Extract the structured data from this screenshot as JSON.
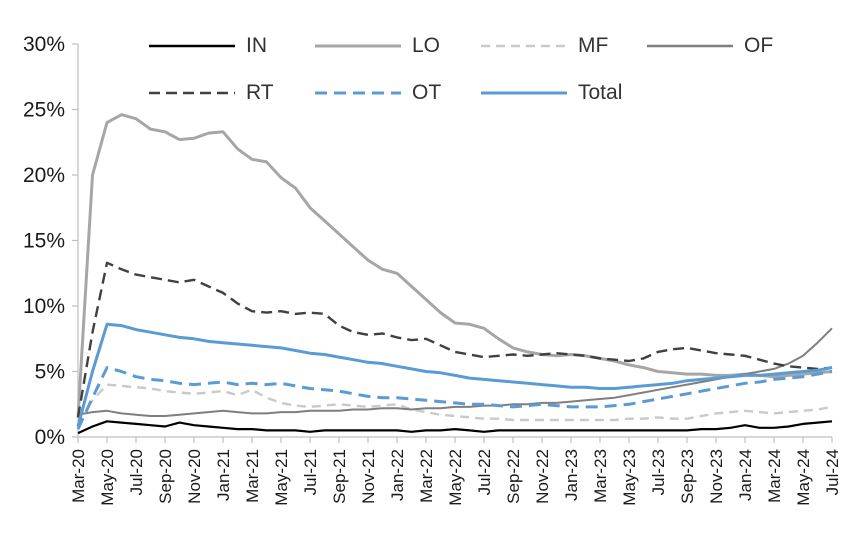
{
  "chart_data": {
    "type": "line",
    "title": "",
    "xlabel": "",
    "ylabel": "",
    "ylim": [
      0,
      30
    ],
    "yticks": [
      0,
      5,
      10,
      15,
      20,
      25,
      30
    ],
    "ytick_labels": [
      "0%",
      "5%",
      "10%",
      "15%",
      "20%",
      "25%",
      "30%"
    ],
    "x_start": "Mar-20",
    "x_end": "Jul-24",
    "frequency": "monthly",
    "x_tick_step": 2,
    "x_tick_labels": [
      "Mar-20",
      "May-20",
      "Jul-20",
      "Sep-20",
      "Nov-20",
      "Jan-21",
      "Mar-21",
      "May-21",
      "Jul-21",
      "Sep-21",
      "Nov-21",
      "Jan-22",
      "Mar-22",
      "May-22",
      "Jul-22",
      "Sep-22",
      "Nov-22",
      "Jan-23",
      "Mar-23",
      "May-23",
      "Jul-23",
      "Sep-23",
      "Nov-23",
      "Jan-24",
      "Mar-24",
      "May-24",
      "Jul-24"
    ],
    "legend_rows": [
      [
        "IN",
        "LO",
        "MF",
        "OF"
      ],
      [
        "RT",
        "OT",
        "Total"
      ]
    ],
    "axis_color": "#bfbfbf",
    "label_color": "#1a1a1a",
    "series": [
      {
        "name": "IN",
        "color": "#000000",
        "line_style": "solid",
        "width": 2.2,
        "dasharray": "",
        "values": [
          0.3,
          0.8,
          1.2,
          1.1,
          1.0,
          0.9,
          0.8,
          1.1,
          0.9,
          0.8,
          0.7,
          0.6,
          0.6,
          0.5,
          0.5,
          0.5,
          0.4,
          0.5,
          0.5,
          0.5,
          0.5,
          0.5,
          0.5,
          0.4,
          0.5,
          0.5,
          0.6,
          0.5,
          0.4,
          0.5,
          0.5,
          0.5,
          0.5,
          0.5,
          0.5,
          0.5,
          0.5,
          0.5,
          0.5,
          0.5,
          0.5,
          0.5,
          0.5,
          0.6,
          0.6,
          0.7,
          0.9,
          0.7,
          0.7,
          0.8,
          1.0,
          1.1,
          1.2
        ]
      },
      {
        "name": "LO",
        "color": "#a6a6a6",
        "line_style": "solid",
        "width": 3,
        "dasharray": "",
        "values": [
          1.5,
          20.0,
          24.0,
          24.6,
          24.3,
          23.5,
          23.3,
          22.7,
          22.8,
          23.2,
          23.3,
          22.0,
          21.2,
          21.0,
          19.8,
          19.0,
          17.5,
          16.5,
          15.5,
          14.5,
          13.5,
          12.8,
          12.5,
          11.5,
          10.5,
          9.5,
          8.7,
          8.6,
          8.3,
          7.5,
          6.8,
          6.5,
          6.3,
          6.2,
          6.3,
          6.2,
          6.0,
          5.8,
          5.5,
          5.3,
          5.0,
          4.9,
          4.8,
          4.8,
          4.7,
          4.7,
          4.8,
          4.7,
          4.6,
          4.7,
          4.8,
          4.9,
          5.0
        ]
      },
      {
        "name": "MF",
        "color": "#c9c9c9",
        "line_style": "dashed",
        "width": 2.4,
        "dasharray": "9 6",
        "values": [
          1.4,
          2.8,
          4.0,
          3.9,
          3.8,
          3.7,
          3.5,
          3.4,
          3.3,
          3.4,
          3.5,
          3.2,
          3.6,
          3.0,
          2.6,
          2.4,
          2.3,
          2.4,
          2.5,
          2.4,
          2.3,
          2.4,
          2.5,
          2.1,
          1.9,
          1.7,
          1.6,
          1.5,
          1.4,
          1.4,
          1.3,
          1.3,
          1.3,
          1.3,
          1.3,
          1.3,
          1.3,
          1.3,
          1.4,
          1.4,
          1.5,
          1.4,
          1.4,
          1.6,
          1.8,
          1.9,
          2.0,
          1.9,
          1.8,
          1.9,
          2.0,
          2.1,
          2.3
        ]
      },
      {
        "name": "OF",
        "color": "#7f7f7f",
        "line_style": "solid",
        "width": 2,
        "dasharray": "",
        "values": [
          1.7,
          1.9,
          2.0,
          1.8,
          1.7,
          1.6,
          1.6,
          1.7,
          1.8,
          1.9,
          2.0,
          1.9,
          1.8,
          1.8,
          1.9,
          1.9,
          2.0,
          2.0,
          2.0,
          2.1,
          2.1,
          2.2,
          2.2,
          2.1,
          2.2,
          2.2,
          2.3,
          2.3,
          2.4,
          2.4,
          2.5,
          2.5,
          2.6,
          2.6,
          2.7,
          2.8,
          2.9,
          3.0,
          3.2,
          3.4,
          3.6,
          3.8,
          4.0,
          4.2,
          4.4,
          4.6,
          4.8,
          5.0,
          5.2,
          5.6,
          6.2,
          7.2,
          8.3
        ]
      },
      {
        "name": "RT",
        "color": "#404040",
        "line_style": "dashed",
        "width": 2.4,
        "dasharray": "11 6",
        "values": [
          1.5,
          8.0,
          13.3,
          12.8,
          12.4,
          12.2,
          12.0,
          11.8,
          12.0,
          11.5,
          11.0,
          10.2,
          9.6,
          9.5,
          9.6,
          9.4,
          9.5,
          9.4,
          8.5,
          8.0,
          7.8,
          7.9,
          7.6,
          7.4,
          7.5,
          7.0,
          6.5,
          6.3,
          6.1,
          6.2,
          6.3,
          6.2,
          6.3,
          6.4,
          6.3,
          6.2,
          6.0,
          5.9,
          5.8,
          6.0,
          6.5,
          6.7,
          6.8,
          6.6,
          6.4,
          6.3,
          6.2,
          5.9,
          5.6,
          5.4,
          5.3,
          5.2,
          5.3
        ]
      },
      {
        "name": "OT",
        "color": "#5b9bd5",
        "line_style": "dashed",
        "width": 3,
        "dasharray": "12 7",
        "values": [
          0.6,
          3.0,
          5.3,
          5.0,
          4.6,
          4.4,
          4.3,
          4.1,
          4.0,
          4.1,
          4.2,
          4.0,
          4.1,
          4.0,
          4.1,
          3.9,
          3.7,
          3.6,
          3.5,
          3.3,
          3.1,
          3.0,
          3.0,
          2.9,
          2.8,
          2.7,
          2.6,
          2.5,
          2.5,
          2.4,
          2.3,
          2.4,
          2.5,
          2.4,
          2.3,
          2.3,
          2.3,
          2.4,
          2.5,
          2.7,
          2.9,
          3.1,
          3.3,
          3.5,
          3.7,
          3.9,
          4.1,
          4.2,
          4.4,
          4.5,
          4.6,
          4.8,
          5.0
        ]
      },
      {
        "name": "Total",
        "color": "#5b9bd5",
        "line_style": "solid",
        "width": 3,
        "dasharray": "",
        "values": [
          0.8,
          5.0,
          8.6,
          8.5,
          8.2,
          8.0,
          7.8,
          7.6,
          7.5,
          7.3,
          7.2,
          7.1,
          7.0,
          6.9,
          6.8,
          6.6,
          6.4,
          6.3,
          6.1,
          5.9,
          5.7,
          5.6,
          5.4,
          5.2,
          5.0,
          4.9,
          4.7,
          4.5,
          4.4,
          4.3,
          4.2,
          4.1,
          4.0,
          3.9,
          3.8,
          3.8,
          3.7,
          3.7,
          3.8,
          3.9,
          4.0,
          4.1,
          4.3,
          4.4,
          4.5,
          4.6,
          4.7,
          4.7,
          4.8,
          4.9,
          5.0,
          5.1,
          5.3
        ]
      }
    ]
  }
}
